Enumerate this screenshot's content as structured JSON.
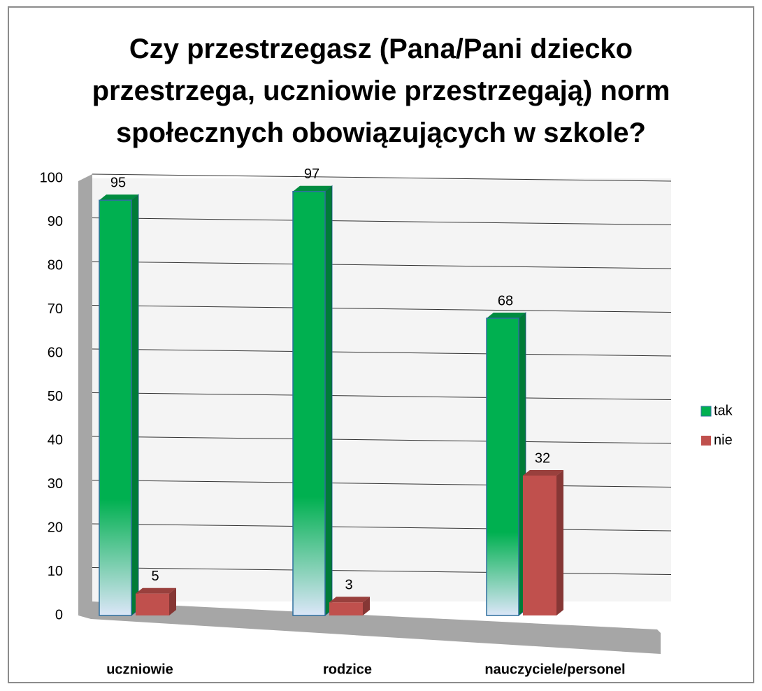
{
  "chart_data": {
    "type": "bar3d",
    "title": "Czy przestrzegasz (Pana/Pani dziecko przestrzega, uczniowie przestrzegają) norm społecznych obowiązujących w szkole?",
    "categories": [
      "uczniowie",
      "rodzice",
      "nauczyciele/personel"
    ],
    "series": [
      {
        "name": "tak",
        "color": "#00b050",
        "values": [
          95,
          97,
          68
        ]
      },
      {
        "name": "nie",
        "color": "#c0504d",
        "values": [
          5,
          3,
          32
        ]
      }
    ],
    "ylim": [
      0,
      100
    ],
    "yticks": [
      0,
      10,
      20,
      30,
      40,
      50,
      60,
      70,
      80,
      90,
      100
    ],
    "grid": true,
    "legend": "right"
  }
}
